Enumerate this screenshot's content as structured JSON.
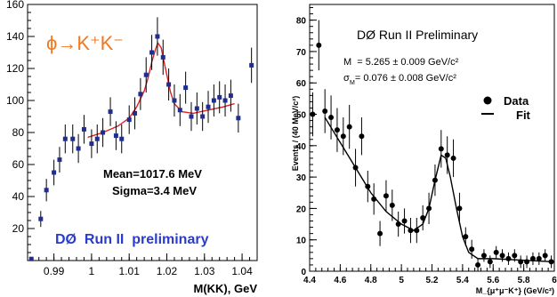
{
  "chart_data": [
    {
      "type": "scatter",
      "title": "",
      "xlabel": "M(KK), GeV",
      "ylabel": "",
      "xlim": [
        0.983,
        1.044
      ],
      "ylim": [
        0,
        160
      ],
      "grid": false,
      "x_ticks": [
        "0.99",
        "1",
        "1.01",
        "1.02",
        "1.03",
        "1.04"
      ],
      "y_ticks": [
        "20",
        "40",
        "60",
        "80",
        "100",
        "120",
        "140",
        "160"
      ],
      "annotations": {
        "decay": "ϕ→K⁺K⁻",
        "mean": "Mean=1017.6 MeV",
        "sigma": "Sigma=3.4 MeV",
        "experiment": "DØ  Run II  preliminary"
      },
      "series": [
        {
          "marker": "filled-square",
          "color": "#1f2d8f",
          "points": [
            {
              "x": 0.984,
              "y": 1,
              "err": 1
            },
            {
              "x": 0.9865,
              "y": 26,
              "err": 5
            },
            {
              "x": 0.988,
              "y": 44,
              "err": 7
            },
            {
              "x": 0.99,
              "y": 55,
              "err": 8
            },
            {
              "x": 0.9915,
              "y": 63,
              "err": 8
            },
            {
              "x": 0.993,
              "y": 76,
              "err": 9
            },
            {
              "x": 0.995,
              "y": 76,
              "err": 9
            },
            {
              "x": 0.9965,
              "y": 70,
              "err": 9
            },
            {
              "x": 0.998,
              "y": 82,
              "err": 9
            },
            {
              "x": 1.0,
              "y": 73,
              "err": 9
            },
            {
              "x": 1.0015,
              "y": 76,
              "err": 9
            },
            {
              "x": 1.003,
              "y": 80,
              "err": 9
            },
            {
              "x": 1.005,
              "y": 93,
              "err": 9
            },
            {
              "x": 1.0065,
              "y": 78,
              "err": 9
            },
            {
              "x": 1.008,
              "y": 76,
              "err": 9
            },
            {
              "x": 1.01,
              "y": 88,
              "err": 9
            },
            {
              "x": 1.0115,
              "y": 92,
              "err": 10
            },
            {
              "x": 1.013,
              "y": 104,
              "err": 10
            },
            {
              "x": 1.0145,
              "y": 116,
              "err": 11
            },
            {
              "x": 1.016,
              "y": 130,
              "err": 11
            },
            {
              "x": 1.0175,
              "y": 140,
              "err": 12
            },
            {
              "x": 1.019,
              "y": 127,
              "err": 11
            },
            {
              "x": 1.0205,
              "y": 110,
              "err": 10
            },
            {
              "x": 1.022,
              "y": 100,
              "err": 10
            },
            {
              "x": 1.0235,
              "y": 94,
              "err": 10
            },
            {
              "x": 1.025,
              "y": 108,
              "err": 10
            },
            {
              "x": 1.0265,
              "y": 90,
              "err": 9
            },
            {
              "x": 1.028,
              "y": 95,
              "err": 10
            },
            {
              "x": 1.0295,
              "y": 90,
              "err": 9
            },
            {
              "x": 1.031,
              "y": 96,
              "err": 10
            },
            {
              "x": 1.0325,
              "y": 100,
              "err": 10
            },
            {
              "x": 1.034,
              "y": 102,
              "err": 10
            },
            {
              "x": 1.0355,
              "y": 100,
              "err": 10
            },
            {
              "x": 1.037,
              "y": 103,
              "err": 10
            },
            {
              "x": 1.039,
              "y": 89,
              "err": 9
            },
            {
              "x": 1.0425,
              "y": 122,
              "err": 11
            }
          ]
        },
        {
          "type": "line",
          "color": "#e02020",
          "points": [
            {
              "x": 0.999,
              "y": 77
            },
            {
              "x": 1.003,
              "y": 80
            },
            {
              "x": 1.007,
              "y": 84
            },
            {
              "x": 1.01,
              "y": 89
            },
            {
              "x": 1.012,
              "y": 96
            },
            {
              "x": 1.014,
              "y": 106
            },
            {
              "x": 1.015,
              "y": 114
            },
            {
              "x": 1.016,
              "y": 124
            },
            {
              "x": 1.017,
              "y": 132
            },
            {
              "x": 1.0176,
              "y": 136
            },
            {
              "x": 1.0185,
              "y": 133
            },
            {
              "x": 1.019,
              "y": 127
            },
            {
              "x": 1.02,
              "y": 116
            },
            {
              "x": 1.021,
              "y": 105
            },
            {
              "x": 1.022,
              "y": 98
            },
            {
              "x": 1.024,
              "y": 93
            },
            {
              "x": 1.027,
              "y": 92
            },
            {
              "x": 1.031,
              "y": 94
            },
            {
              "x": 1.035,
              "y": 96
            },
            {
              "x": 1.038,
              "y": 98
            }
          ]
        }
      ]
    },
    {
      "type": "scatter",
      "title": "DØ Run II Preliminary",
      "xlabel": "M_{μ⁺μ⁻K⁺} (GeV/c²)",
      "ylabel": "Events / (40  MeV/c²)",
      "xlim": [
        4.4,
        6.0
      ],
      "ylim": [
        0,
        85
      ],
      "grid": false,
      "x_ticks": [
        "4.4",
        "4.6",
        "4.8",
        "5",
        "5.2",
        "5.4",
        "5.6",
        "5.8",
        "6"
      ],
      "y_ticks": [
        "0",
        "10",
        "20",
        "30",
        "40",
        "50",
        "60",
        "70",
        "80"
      ],
      "annotations": {
        "mass": "M  = 5.265 ± 0.009 GeV/c²",
        "width": "σ  = 0.076 ± 0.008 GeV/c²",
        "width_sub": "M"
      },
      "legend": {
        "position": "right",
        "entries": [
          "Data",
          "Fit"
        ]
      },
      "series": [
        {
          "name": "Data",
          "marker": "filled-circle",
          "color": "#000000",
          "points": [
            {
              "x": 4.42,
              "y": 50,
              "err": 7
            },
            {
              "x": 4.46,
              "y": 72,
              "err": 8
            },
            {
              "x": 4.5,
              "y": 51,
              "err": 7
            },
            {
              "x": 4.54,
              "y": 49,
              "err": 7
            },
            {
              "x": 4.58,
              "y": 45,
              "err": 7
            },
            {
              "x": 4.62,
              "y": 43,
              "err": 6
            },
            {
              "x": 4.66,
              "y": 46,
              "err": 7
            },
            {
              "x": 4.7,
              "y": 33,
              "err": 6
            },
            {
              "x": 4.74,
              "y": 43,
              "err": 6
            },
            {
              "x": 4.78,
              "y": 27,
              "err": 5
            },
            {
              "x": 4.82,
              "y": 23,
              "err": 5
            },
            {
              "x": 4.86,
              "y": 12,
              "err": 4
            },
            {
              "x": 4.9,
              "y": 24,
              "err": 5
            },
            {
              "x": 4.94,
              "y": 21,
              "err": 5
            },
            {
              "x": 4.98,
              "y": 15,
              "err": 4
            },
            {
              "x": 5.02,
              "y": 16,
              "err": 4
            },
            {
              "x": 5.06,
              "y": 13,
              "err": 4
            },
            {
              "x": 5.1,
              "y": 13,
              "err": 4
            },
            {
              "x": 5.14,
              "y": 17,
              "err": 4
            },
            {
              "x": 5.18,
              "y": 20,
              "err": 5
            },
            {
              "x": 5.22,
              "y": 29,
              "err": 5
            },
            {
              "x": 5.26,
              "y": 39,
              "err": 6
            },
            {
              "x": 5.3,
              "y": 37,
              "err": 6
            },
            {
              "x": 5.34,
              "y": 36,
              "err": 6
            },
            {
              "x": 5.38,
              "y": 20,
              "err": 5
            },
            {
              "x": 5.42,
              "y": 11,
              "err": 3
            },
            {
              "x": 5.46,
              "y": 7,
              "err": 3
            },
            {
              "x": 5.5,
              "y": 2,
              "err": 2
            },
            {
              "x": 5.54,
              "y": 5,
              "err": 2
            },
            {
              "x": 5.58,
              "y": 3,
              "err": 2
            },
            {
              "x": 5.62,
              "y": 6,
              "err": 2
            },
            {
              "x": 5.66,
              "y": 5,
              "err": 2
            },
            {
              "x": 5.7,
              "y": 4,
              "err": 2
            },
            {
              "x": 5.74,
              "y": 5,
              "err": 2
            },
            {
              "x": 5.78,
              "y": 3,
              "err": 2
            },
            {
              "x": 5.82,
              "y": 3,
              "err": 2
            },
            {
              "x": 5.86,
              "y": 4,
              "err": 2
            },
            {
              "x": 5.9,
              "y": 4,
              "err": 2
            },
            {
              "x": 5.94,
              "y": 5,
              "err": 2
            },
            {
              "x": 5.98,
              "y": 3,
              "err": 2
            }
          ]
        },
        {
          "name": "Fit",
          "type": "line",
          "color": "#000000",
          "points": [
            {
              "x": 4.5,
              "y": 49
            },
            {
              "x": 4.6,
              "y": 41
            },
            {
              "x": 4.7,
              "y": 33
            },
            {
              "x": 4.8,
              "y": 25
            },
            {
              "x": 4.9,
              "y": 19
            },
            {
              "x": 5.0,
              "y": 15
            },
            {
              "x": 5.08,
              "y": 13
            },
            {
              "x": 5.14,
              "y": 15
            },
            {
              "x": 5.18,
              "y": 20
            },
            {
              "x": 5.22,
              "y": 29
            },
            {
              "x": 5.26,
              "y": 37
            },
            {
              "x": 5.29,
              "y": 36
            },
            {
              "x": 5.32,
              "y": 30
            },
            {
              "x": 5.36,
              "y": 20
            },
            {
              "x": 5.4,
              "y": 11
            },
            {
              "x": 5.44,
              "y": 6
            },
            {
              "x": 5.5,
              "y": 4
            },
            {
              "x": 5.6,
              "y": 4
            },
            {
              "x": 5.8,
              "y": 3.5
            },
            {
              "x": 6.0,
              "y": 3
            }
          ]
        }
      ]
    }
  ]
}
